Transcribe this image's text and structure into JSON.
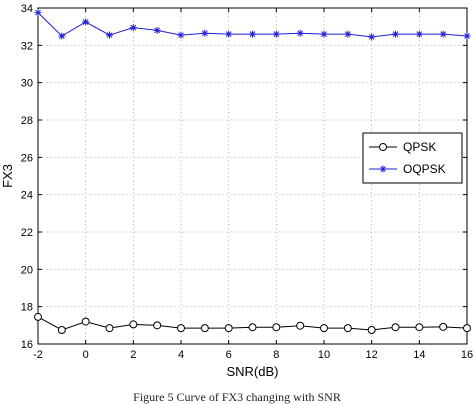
{
  "chart_data": {
    "type": "line",
    "xlabel": "SNR(dB)",
    "ylabel": "FX3",
    "xlim": [
      -2,
      16
    ],
    "ylim": [
      16,
      34
    ],
    "xticks": [
      -2,
      0,
      2,
      4,
      6,
      8,
      10,
      12,
      14,
      16
    ],
    "yticks": [
      16,
      18,
      20,
      22,
      24,
      26,
      28,
      30,
      32,
      34
    ],
    "grid": true,
    "legend_position": "right",
    "x": [
      -2,
      -1,
      0,
      1,
      2,
      3,
      4,
      5,
      6,
      7,
      8,
      9,
      10,
      11,
      12,
      13,
      14,
      15,
      16
    ],
    "series": [
      {
        "name": "QPSK",
        "marker": "circle",
        "color": "#000000",
        "values": [
          17.45,
          16.75,
          17.2,
          16.85,
          17.05,
          17.0,
          16.85,
          16.85,
          16.85,
          16.9,
          16.9,
          16.98,
          16.85,
          16.85,
          16.75,
          16.9,
          16.9,
          16.92,
          16.85
        ]
      },
      {
        "name": "OQPSK",
        "marker": "asterisk",
        "color": "#1f1fd6",
        "values": [
          33.75,
          32.5,
          33.25,
          32.55,
          32.95,
          32.8,
          32.55,
          32.65,
          32.6,
          32.6,
          32.6,
          32.65,
          32.6,
          32.6,
          32.45,
          32.6,
          32.6,
          32.6,
          32.5
        ]
      }
    ]
  },
  "caption": "Figure 5 Curve of FX3 changing with SNR"
}
